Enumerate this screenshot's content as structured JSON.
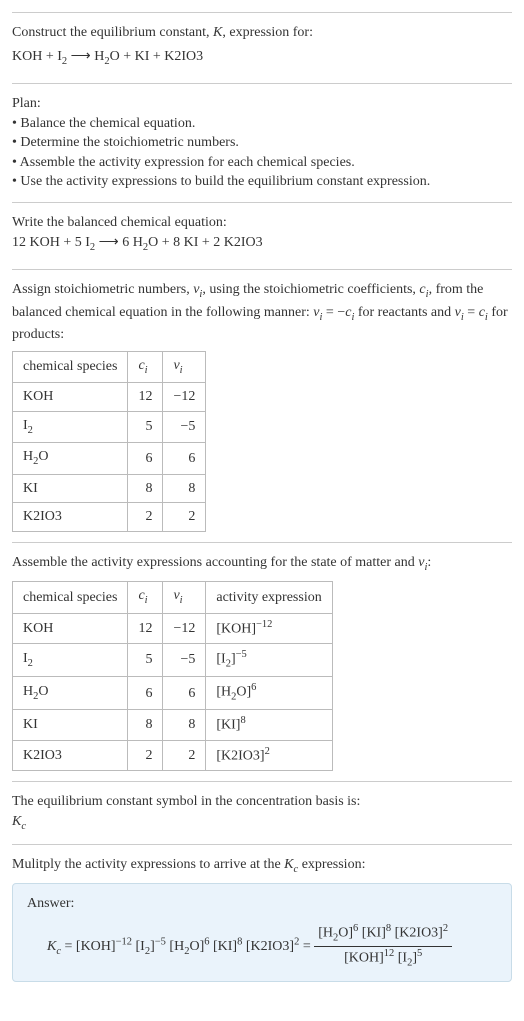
{
  "header": {
    "line1": "Construct the equilibrium constant, <i>K</i>, expression for:",
    "eq": "KOH + I<sub>2</sub>&nbsp;⟶&nbsp;H<sub>2</sub>O + KI + K2IO3"
  },
  "plan": {
    "title": "Plan:",
    "items": [
      "• Balance the chemical equation.",
      "• Determine the stoichiometric numbers.",
      "• Assemble the activity expression for each chemical species.",
      "• Use the activity expressions to build the equilibrium constant expression."
    ]
  },
  "balanced": {
    "title": "Write the balanced chemical equation:",
    "eq": "12 KOH + 5 I<sub>2</sub>&nbsp;⟶&nbsp;6 H<sub>2</sub>O + 8 KI + 2 K2IO3"
  },
  "stoich": {
    "intro": "Assign stoichiometric numbers, <i>ν<sub>i</sub></i>, using the stoichiometric coefficients, <i>c<sub>i</sub></i>, from the balanced chemical equation in the following manner: <i>ν<sub>i</sub></i> = −<i>c<sub>i</sub></i> for reactants and <i>ν<sub>i</sub></i> = <i>c<sub>i</sub></i> for products:",
    "headers": [
      "chemical species",
      "<i>c<sub>i</sub></i>",
      "<i>ν<sub>i</sub></i>"
    ],
    "rows": [
      {
        "species": "KOH",
        "c": "12",
        "v": "−12"
      },
      {
        "species": "I<sub>2</sub>",
        "c": "5",
        "v": "−5"
      },
      {
        "species": "H<sub>2</sub>O",
        "c": "6",
        "v": "6"
      },
      {
        "species": "KI",
        "c": "8",
        "v": "8"
      },
      {
        "species": "K2IO3",
        "c": "2",
        "v": "2"
      }
    ]
  },
  "activity": {
    "intro": "Assemble the activity expressions accounting for the state of matter and <i>ν<sub>i</sub></i>:",
    "headers": [
      "chemical species",
      "<i>c<sub>i</sub></i>",
      "<i>ν<sub>i</sub></i>",
      "activity expression"
    ],
    "rows": [
      {
        "species": "KOH",
        "c": "12",
        "v": "−12",
        "a": "[KOH]<sup>−12</sup>"
      },
      {
        "species": "I<sub>2</sub>",
        "c": "5",
        "v": "−5",
        "a": "[I<sub>2</sub>]<sup>−5</sup>"
      },
      {
        "species": "H<sub>2</sub>O",
        "c": "6",
        "v": "6",
        "a": "[H<sub>2</sub>O]<sup>6</sup>"
      },
      {
        "species": "KI",
        "c": "8",
        "v": "8",
        "a": "[KI]<sup>8</sup>"
      },
      {
        "species": "K2IO3",
        "c": "2",
        "v": "2",
        "a": "[K2IO3]<sup>2</sup>"
      }
    ]
  },
  "symbol": {
    "line1": "The equilibrium constant symbol in the concentration basis is:",
    "line2": "<i>K<sub>c</sub></i>"
  },
  "multiply": {
    "line": "Mulitply the activity expressions to arrive at the <i>K<sub>c</sub></i> expression:"
  },
  "answer": {
    "label": "Answer:",
    "lhs": "<i>K<sub>c</sub></i> = [KOH]<sup>−12</sup> [I<sub>2</sub>]<sup>−5</sup> [H<sub>2</sub>O]<sup>6</sup> [KI]<sup>8</sup> [K2IO3]<sup>2</sup> = ",
    "frac_num": "[H<sub>2</sub>O]<sup>6</sup> [KI]<sup>8</sup> [K2IO3]<sup>2</sup>",
    "frac_den": "[KOH]<sup>12</sup> [I<sub>2</sub>]<sup>5</sup>"
  },
  "colors": {
    "border": "#cccccc",
    "table_border": "#bbbbbb",
    "answer_bg": "#eaf3fb",
    "answer_border": "#c8dce8",
    "text": "#333333"
  },
  "fontsize_body": 14
}
